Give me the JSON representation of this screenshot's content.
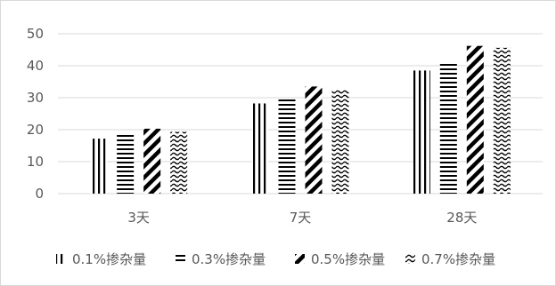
{
  "chart_data": {
    "type": "bar",
    "categories": [
      "3天",
      "7天",
      "28天"
    ],
    "series": [
      {
        "name": "0.1%掺杂量",
        "values": [
          17.2,
          28.2,
          38.5
        ],
        "pattern": "vertical-lines"
      },
      {
        "name": "0.3%掺杂量",
        "values": [
          18.5,
          29.5,
          40.8
        ],
        "pattern": "horizontal-lines"
      },
      {
        "name": "0.5%掺杂量",
        "values": [
          20.3,
          33.5,
          46.2
        ],
        "pattern": "diagonal-lines"
      },
      {
        "name": "0.7%掺杂量",
        "values": [
          19.3,
          32.6,
          45.6
        ],
        "pattern": "wave-lines"
      }
    ],
    "ylim": [
      0,
      50
    ],
    "yticks": [
      "0",
      "10",
      "20",
      "30",
      "40",
      "50"
    ],
    "grid": true,
    "legend_position": "bottom",
    "colors": {
      "mark": "#000000",
      "grid": "#d9d9d9",
      "text": "#595959"
    }
  }
}
